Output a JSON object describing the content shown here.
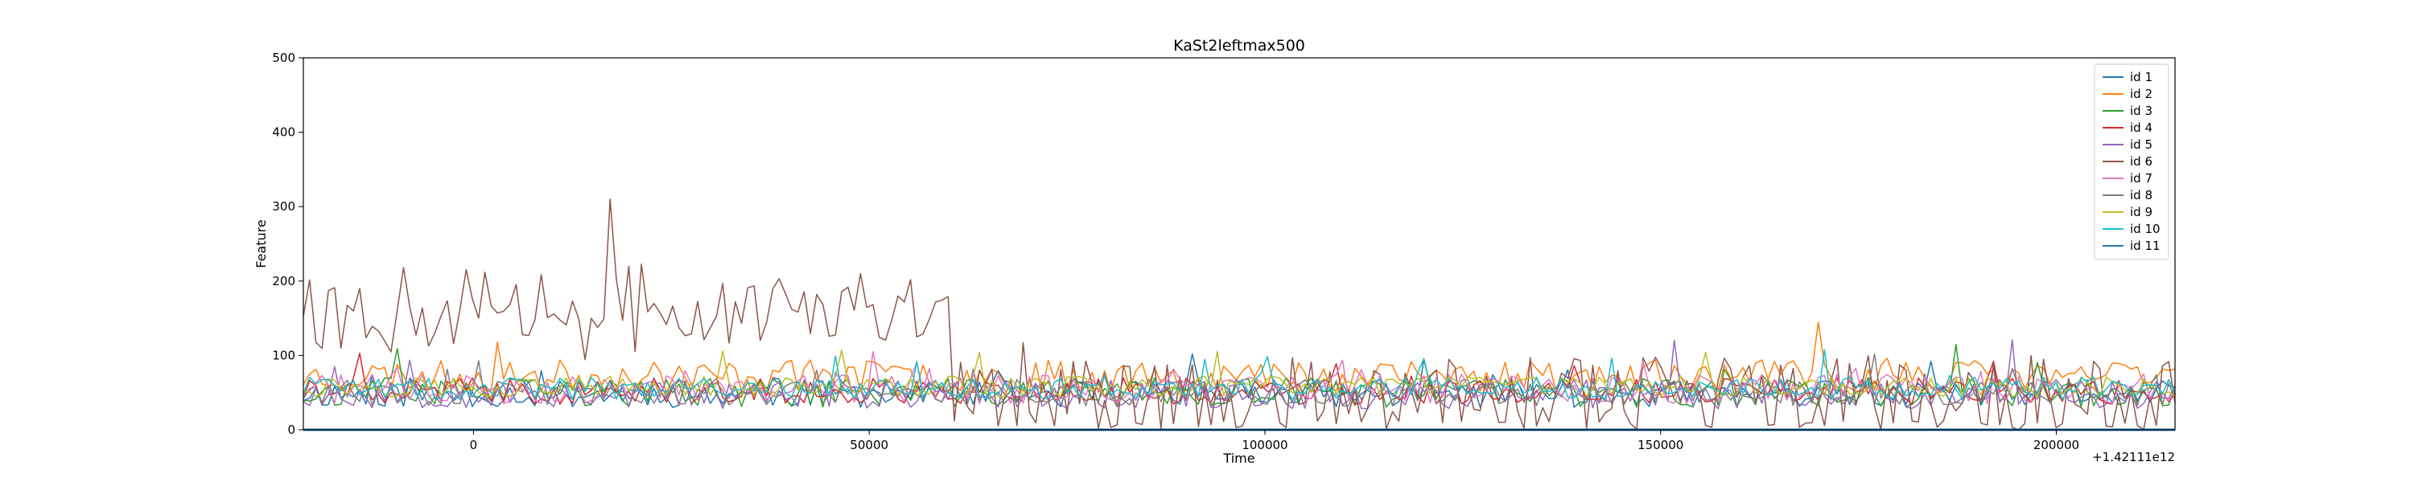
{
  "chart_data": {
    "type": "line",
    "title": "KaSt2leftmax500",
    "xlabel": "Time",
    "ylabel": "Feature",
    "x_offset_label": "+1.42111e12",
    "xlim": [
      -21500,
      215000
    ],
    "ylim": [
      0,
      500
    ],
    "x_ticks": [
      0,
      50000,
      100000,
      150000,
      200000
    ],
    "y_ticks": [
      0,
      100,
      200,
      300,
      400,
      500
    ],
    "x_range_data": [
      -21500,
      215000
    ],
    "n_points": 300,
    "grid": false,
    "legend_position": "top-right",
    "series": [
      {
        "name": "id 1",
        "color": "#1f77b4",
        "baseline": 48,
        "spread": 18,
        "seed": 11
      },
      {
        "name": "id 2",
        "color": "#ff7f0e",
        "baseline": 72,
        "spread": 22,
        "seed": 23
      },
      {
        "name": "id 3",
        "color": "#2ca02c",
        "baseline": 50,
        "spread": 20,
        "seed": 37
      },
      {
        "name": "id 4",
        "color": "#d62728",
        "baseline": 52,
        "spread": 18,
        "seed": 41
      },
      {
        "name": "id 5",
        "color": "#9467bd",
        "baseline": 48,
        "spread": 20,
        "seed": 53
      },
      {
        "name": "id 6",
        "color": "#8c564b",
        "baseline": 60,
        "spread": 40,
        "seed": 67
      },
      {
        "name": "id 7",
        "color": "#e377c2",
        "baseline": 55,
        "spread": 20,
        "seed": 71
      },
      {
        "name": "id 8",
        "color": "#7f7f7f",
        "baseline": 50,
        "spread": 18,
        "seed": 83
      },
      {
        "name": "id 9",
        "color": "#bcbd22",
        "baseline": 58,
        "spread": 14,
        "seed": 97
      },
      {
        "name": "id 10",
        "color": "#17becf",
        "baseline": 56,
        "spread": 15,
        "seed": 101
      },
      {
        "name": "id 11",
        "color": "#1f77b4",
        "baseline": 0,
        "spread": 0,
        "seed": 0
      }
    ]
  }
}
